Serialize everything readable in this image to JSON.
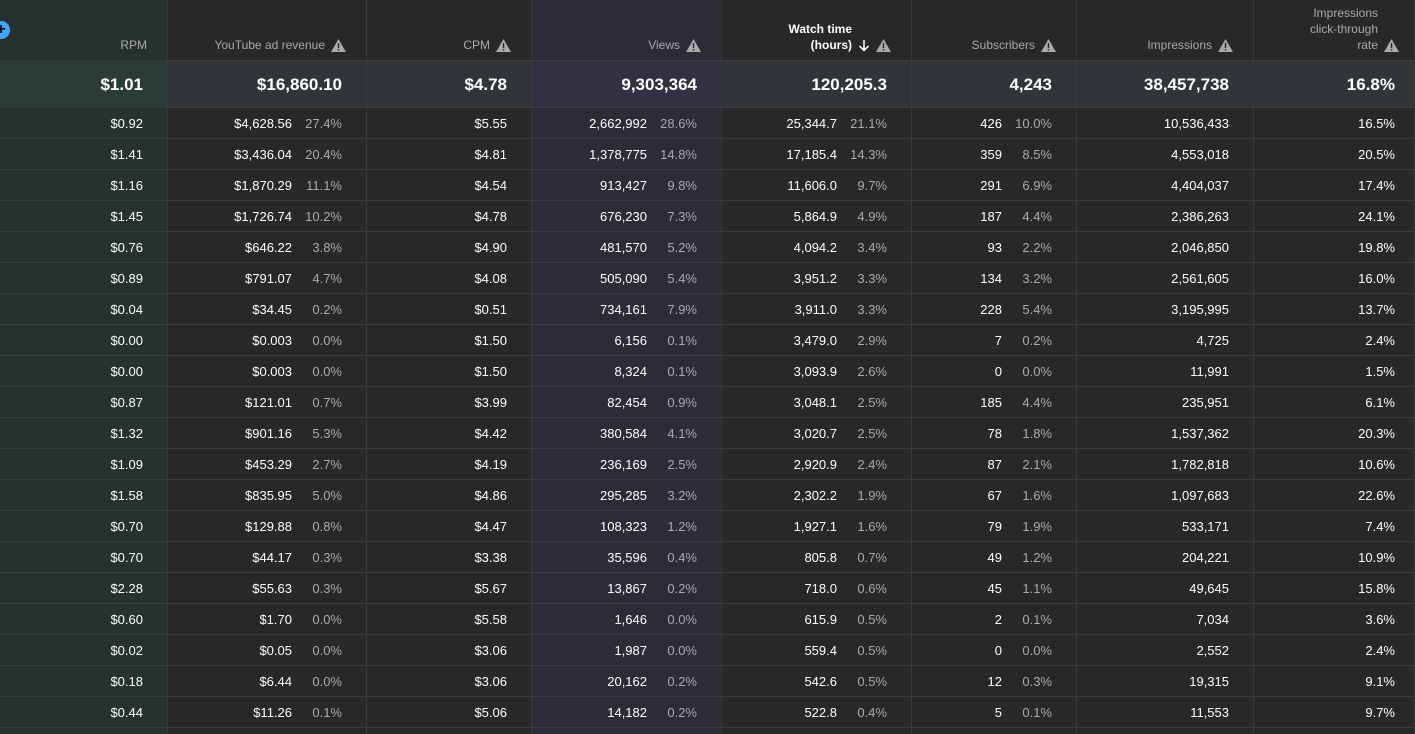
{
  "add_button": "+",
  "columns": [
    {
      "key": "rpm",
      "label": "RPM",
      "total": "$1.01",
      "has_pct": false,
      "active": false
    },
    {
      "key": "revenue",
      "label": "YouTube ad revenue",
      "total": "$16,860.10",
      "has_pct": true,
      "active": false
    },
    {
      "key": "cpm",
      "label": "CPM",
      "total": "$4.78",
      "has_pct": false,
      "active": false
    },
    {
      "key": "views",
      "label": "Views",
      "total": "9,303,364",
      "has_pct": true,
      "active": false
    },
    {
      "key": "watch",
      "label": "Watch time\n(hours)",
      "total": "120,205.3",
      "has_pct": true,
      "active": true
    },
    {
      "key": "subs",
      "label": "Subscribers",
      "total": "4,243",
      "has_pct": true,
      "active": false
    },
    {
      "key": "impr",
      "label": "Impressions",
      "total": "38,457,738",
      "has_pct": false,
      "active": false
    },
    {
      "key": "ctr",
      "label": "Impressions\nclick-through\nrate",
      "total": "16.8%",
      "has_pct": false,
      "active": false
    }
  ],
  "rows": [
    {
      "rpm": "$0.92",
      "revenue": [
        "$4,628.56",
        "27.4%"
      ],
      "cpm": "$5.55",
      "views": [
        "2,662,992",
        "28.6%"
      ],
      "watch": [
        "25,344.7",
        "21.1%"
      ],
      "subs": [
        "426",
        "10.0%"
      ],
      "impr": "10,536,433",
      "ctr": "16.5%"
    },
    {
      "rpm": "$1.41",
      "revenue": [
        "$3,436.04",
        "20.4%"
      ],
      "cpm": "$4.81",
      "views": [
        "1,378,775",
        "14.8%"
      ],
      "watch": [
        "17,185.4",
        "14.3%"
      ],
      "subs": [
        "359",
        "8.5%"
      ],
      "impr": "4,553,018",
      "ctr": "20.5%"
    },
    {
      "rpm": "$1.16",
      "revenue": [
        "$1,870.29",
        "11.1%"
      ],
      "cpm": "$4.54",
      "views": [
        "913,427",
        "9.8%"
      ],
      "watch": [
        "11,606.0",
        "9.7%"
      ],
      "subs": [
        "291",
        "6.9%"
      ],
      "impr": "4,404,037",
      "ctr": "17.4%"
    },
    {
      "rpm": "$1.45",
      "revenue": [
        "$1,726.74",
        "10.2%"
      ],
      "cpm": "$4.78",
      "views": [
        "676,230",
        "7.3%"
      ],
      "watch": [
        "5,864.9",
        "4.9%"
      ],
      "subs": [
        "187",
        "4.4%"
      ],
      "impr": "2,386,263",
      "ctr": "24.1%"
    },
    {
      "rpm": "$0.76",
      "revenue": [
        "$646.22",
        "3.8%"
      ],
      "cpm": "$4.90",
      "views": [
        "481,570",
        "5.2%"
      ],
      "watch": [
        "4,094.2",
        "3.4%"
      ],
      "subs": [
        "93",
        "2.2%"
      ],
      "impr": "2,046,850",
      "ctr": "19.8%"
    },
    {
      "rpm": "$0.89",
      "revenue": [
        "$791.07",
        "4.7%"
      ],
      "cpm": "$4.08",
      "views": [
        "505,090",
        "5.4%"
      ],
      "watch": [
        "3,951.2",
        "3.3%"
      ],
      "subs": [
        "134",
        "3.2%"
      ],
      "impr": "2,561,605",
      "ctr": "16.0%"
    },
    {
      "rpm": "$0.04",
      "revenue": [
        "$34.45",
        "0.2%"
      ],
      "cpm": "$0.51",
      "views": [
        "734,161",
        "7.9%"
      ],
      "watch": [
        "3,911.0",
        "3.3%"
      ],
      "subs": [
        "228",
        "5.4%"
      ],
      "impr": "3,195,995",
      "ctr": "13.7%"
    },
    {
      "rpm": "$0.00",
      "revenue": [
        "$0.003",
        "0.0%"
      ],
      "cpm": "$1.50",
      "views": [
        "6,156",
        "0.1%"
      ],
      "watch": [
        "3,479.0",
        "2.9%"
      ],
      "subs": [
        "7",
        "0.2%"
      ],
      "impr": "4,725",
      "ctr": "2.4%"
    },
    {
      "rpm": "$0.00",
      "revenue": [
        "$0.003",
        "0.0%"
      ],
      "cpm": "$1.50",
      "views": [
        "8,324",
        "0.1%"
      ],
      "watch": [
        "3,093.9",
        "2.6%"
      ],
      "subs": [
        "0",
        "0.0%"
      ],
      "impr": "11,991",
      "ctr": "1.5%"
    },
    {
      "rpm": "$0.87",
      "revenue": [
        "$121.01",
        "0.7%"
      ],
      "cpm": "$3.99",
      "views": [
        "82,454",
        "0.9%"
      ],
      "watch": [
        "3,048.1",
        "2.5%"
      ],
      "subs": [
        "185",
        "4.4%"
      ],
      "impr": "235,951",
      "ctr": "6.1%"
    },
    {
      "rpm": "$1.32",
      "revenue": [
        "$901.16",
        "5.3%"
      ],
      "cpm": "$4.42",
      "views": [
        "380,584",
        "4.1%"
      ],
      "watch": [
        "3,020.7",
        "2.5%"
      ],
      "subs": [
        "78",
        "1.8%"
      ],
      "impr": "1,537,362",
      "ctr": "20.3%"
    },
    {
      "rpm": "$1.09",
      "revenue": [
        "$453.29",
        "2.7%"
      ],
      "cpm": "$4.19",
      "views": [
        "236,169",
        "2.5%"
      ],
      "watch": [
        "2,920.9",
        "2.4%"
      ],
      "subs": [
        "87",
        "2.1%"
      ],
      "impr": "1,782,818",
      "ctr": "10.6%"
    },
    {
      "rpm": "$1.58",
      "revenue": [
        "$835.95",
        "5.0%"
      ],
      "cpm": "$4.86",
      "views": [
        "295,285",
        "3.2%"
      ],
      "watch": [
        "2,302.2",
        "1.9%"
      ],
      "subs": [
        "67",
        "1.6%"
      ],
      "impr": "1,097,683",
      "ctr": "22.6%"
    },
    {
      "rpm": "$0.70",
      "revenue": [
        "$129.88",
        "0.8%"
      ],
      "cpm": "$4.47",
      "views": [
        "108,323",
        "1.2%"
      ],
      "watch": [
        "1,927.1",
        "1.6%"
      ],
      "subs": [
        "79",
        "1.9%"
      ],
      "impr": "533,171",
      "ctr": "7.4%"
    },
    {
      "rpm": "$0.70",
      "revenue": [
        "$44.17",
        "0.3%"
      ],
      "cpm": "$3.38",
      "views": [
        "35,596",
        "0.4%"
      ],
      "watch": [
        "805.8",
        "0.7%"
      ],
      "subs": [
        "49",
        "1.2%"
      ],
      "impr": "204,221",
      "ctr": "10.9%"
    },
    {
      "rpm": "$2.28",
      "revenue": [
        "$55.63",
        "0.3%"
      ],
      "cpm": "$5.67",
      "views": [
        "13,867",
        "0.2%"
      ],
      "watch": [
        "718.0",
        "0.6%"
      ],
      "subs": [
        "45",
        "1.1%"
      ],
      "impr": "49,645",
      "ctr": "15.8%"
    },
    {
      "rpm": "$0.60",
      "revenue": [
        "$1.70",
        "0.0%"
      ],
      "cpm": "$5.58",
      "views": [
        "1,646",
        "0.0%"
      ],
      "watch": [
        "615.9",
        "0.5%"
      ],
      "subs": [
        "2",
        "0.1%"
      ],
      "impr": "7,034",
      "ctr": "3.6%"
    },
    {
      "rpm": "$0.02",
      "revenue": [
        "$0.05",
        "0.0%"
      ],
      "cpm": "$3.06",
      "views": [
        "1,987",
        "0.0%"
      ],
      "watch": [
        "559.4",
        "0.5%"
      ],
      "subs": [
        "0",
        "0.0%"
      ],
      "impr": "2,552",
      "ctr": "2.4%"
    },
    {
      "rpm": "$0.18",
      "revenue": [
        "$6.44",
        "0.0%"
      ],
      "cpm": "$3.06",
      "views": [
        "20,162",
        "0.2%"
      ],
      "watch": [
        "542.6",
        "0.5%"
      ],
      "subs": [
        "12",
        "0.3%"
      ],
      "impr": "19,315",
      "ctr": "9.1%"
    },
    {
      "rpm": "$0.44",
      "revenue": [
        "$11.26",
        "0.1%"
      ],
      "cpm": "$5.06",
      "views": [
        "14,182",
        "0.2%"
      ],
      "watch": [
        "522.8",
        "0.4%"
      ],
      "subs": [
        "5",
        "0.1%"
      ],
      "impr": "11,553",
      "ctr": "9.7%"
    }
  ],
  "colors": {
    "accent": "#3ea6ff",
    "background": "#282828",
    "rpm_highlight": "#263230",
    "views_highlight": "#2f2a37"
  },
  "icons": {
    "warning": "warning-icon",
    "sort": "arrow-down-icon",
    "add": "plus-icon"
  }
}
